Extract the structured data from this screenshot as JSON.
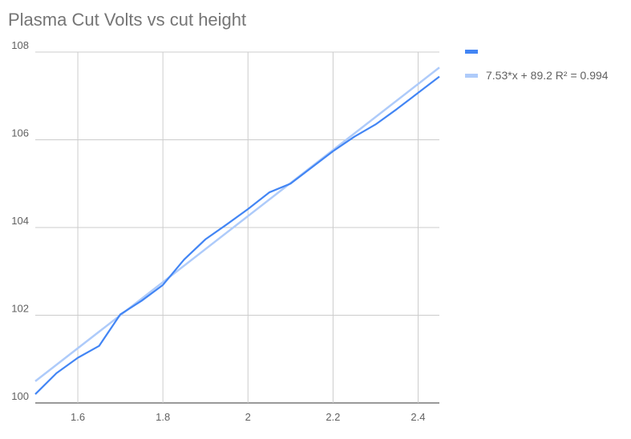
{
  "chart_data": {
    "type": "line",
    "title": "Plasma Cut Volts vs cut height",
    "xlabel": "",
    "ylabel": "",
    "xlim": [
      1.5,
      2.45
    ],
    "ylim": [
      100,
      108
    ],
    "xticks": [
      1.6,
      1.8,
      2,
      2.2,
      2.4
    ],
    "xtick_labels": [
      "1.6",
      "1.8",
      "2",
      "2.2",
      "2.4"
    ],
    "yticks": [
      100,
      102,
      104,
      106,
      108
    ],
    "ytick_labels": [
      "100",
      "102",
      "104",
      "106",
      "108"
    ],
    "grid": true,
    "legend_position": "right",
    "series": [
      {
        "name": "",
        "color": "#4285f4",
        "x": [
          1.5,
          1.55,
          1.6,
          1.65,
          1.7,
          1.75,
          1.8,
          1.85,
          1.9,
          1.95,
          2.0,
          2.05,
          2.1,
          2.15,
          2.2,
          2.25,
          2.3,
          2.35,
          2.4,
          2.45
        ],
        "values": [
          100.2,
          100.68,
          101.03,
          101.3,
          102.02,
          102.33,
          102.69,
          103.27,
          103.73,
          104.07,
          104.42,
          104.8,
          105.0,
          105.37,
          105.74,
          106.07,
          106.35,
          106.7,
          107.07,
          107.44
        ]
      }
    ],
    "trendline": {
      "label": "7.53*x + 89.2 R² = 0.994",
      "slope": 7.53,
      "intercept": 89.2,
      "r2": 0.994,
      "color": "#aecbfa"
    }
  }
}
